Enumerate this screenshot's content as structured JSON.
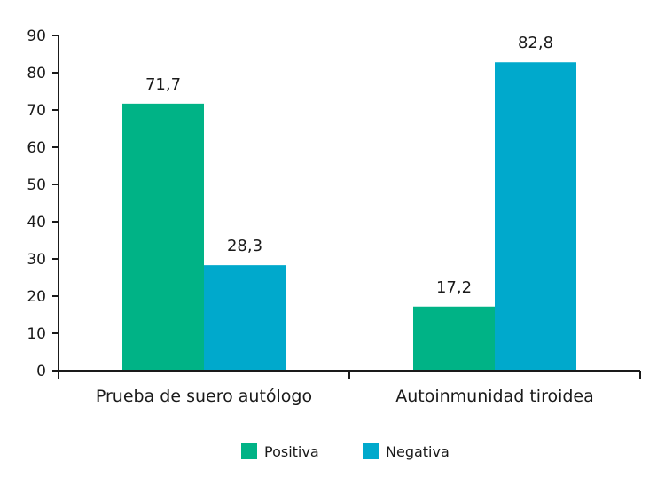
{
  "chart_data": {
    "type": "bar",
    "title": "",
    "xlabel": "",
    "ylabel": "",
    "ylim": [
      0,
      90
    ],
    "yticks": [
      0,
      10,
      20,
      30,
      40,
      50,
      60,
      70,
      80,
      90
    ],
    "ytick_labels": [
      "0",
      "10",
      "20",
      "30",
      "40",
      "50",
      "60",
      "70",
      "80",
      "90"
    ],
    "categories": [
      "Prueba de suero autólogo",
      "Autoinmunidad tiroidea"
    ],
    "series": [
      {
        "name": "Positiva",
        "color": "#00b386",
        "values": [
          71.7,
          17.2
        ],
        "labels": [
          "71,7",
          "17,2"
        ]
      },
      {
        "name": "Negativa",
        "color": "#00a9cc",
        "values": [
          28.3,
          82.8
        ],
        "labels": [
          "28,3",
          "82,8"
        ]
      }
    ],
    "grid": false,
    "legend_position": "bottom-center"
  }
}
